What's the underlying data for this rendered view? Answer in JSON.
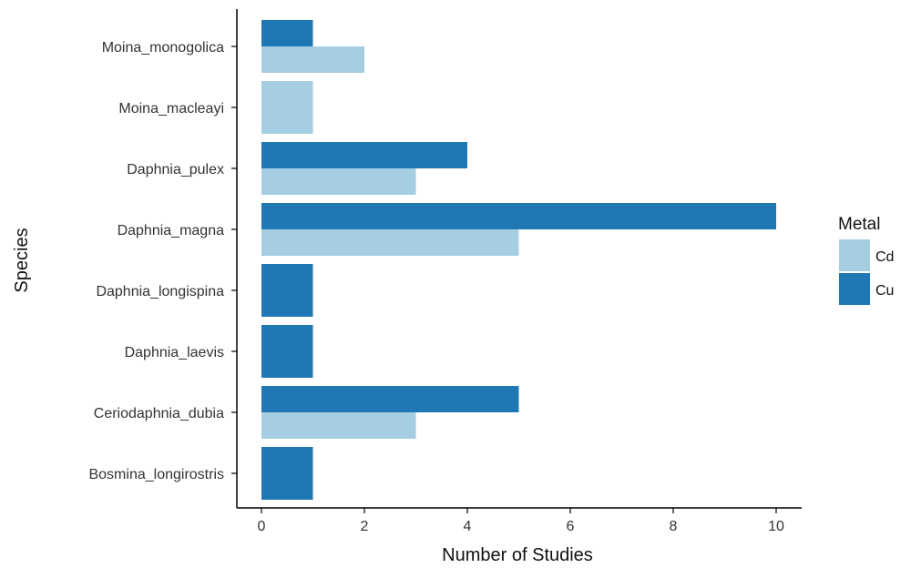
{
  "chart_data": {
    "type": "bar",
    "orientation": "horizontal",
    "title": "",
    "xlabel": "Number of Studies",
    "ylabel": "Species",
    "xlim": [
      0,
      10.5
    ],
    "xticks": [
      0,
      2,
      4,
      6,
      8,
      10
    ],
    "grid": false,
    "legend_position": "right",
    "legend_title": "Metal",
    "categories": [
      "Moina_monogolica",
      "Moina_macleayi",
      "Daphnia_pulex",
      "Daphnia_magna",
      "Daphnia_longispina",
      "Daphnia_laevis",
      "Ceriodaphnia_dubia",
      "Bosmina_longirostris"
    ],
    "series": [
      {
        "name": "Cd",
        "color": "#a6cee3",
        "values": [
          2,
          1,
          3,
          5,
          0,
          0,
          3,
          0
        ]
      },
      {
        "name": "Cu",
        "color": "#1f78b4",
        "values": [
          1,
          0,
          4,
          10,
          1,
          1,
          5,
          1
        ]
      }
    ]
  }
}
